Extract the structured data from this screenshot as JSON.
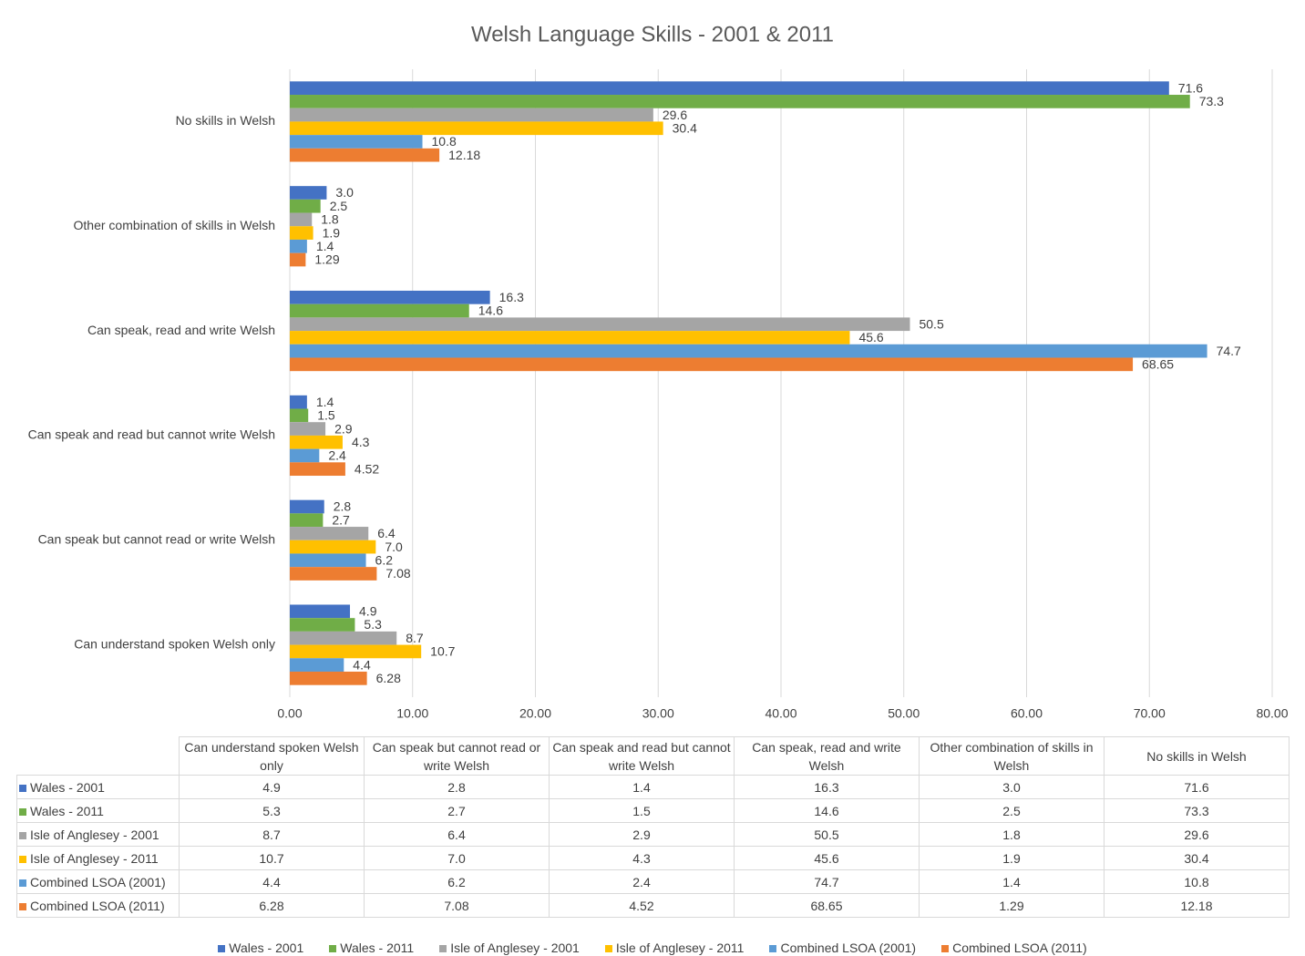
{
  "chart_data": {
    "type": "bar",
    "orientation": "horizontal",
    "title": "Welsh Language Skills - 2001 & 2011",
    "categories": [
      "Can understand spoken Welsh only",
      "Can speak but cannot read or write Welsh",
      "Can speak and read but cannot write Welsh",
      "Can speak, read and write Welsh",
      "Other combination of skills in Welsh",
      "No skills in Welsh"
    ],
    "series": [
      {
        "name": "Wales - 2001",
        "color": "#4472c4",
        "values": [
          4.9,
          2.8,
          1.4,
          16.3,
          3.0,
          71.6
        ],
        "value_labels": [
          "4.9",
          "2.8",
          "1.4",
          "16.3",
          "3.0",
          "71.6"
        ]
      },
      {
        "name": "Wales - 2011",
        "color": "#70ad47",
        "values": [
          5.3,
          2.7,
          1.5,
          14.6,
          2.5,
          73.3
        ],
        "value_labels": [
          "5.3",
          "2.7",
          "1.5",
          "14.6",
          "2.5",
          "73.3"
        ]
      },
      {
        "name": "Isle of Anglesey - 2001",
        "color": "#a5a5a5",
        "values": [
          8.7,
          6.4,
          2.9,
          50.5,
          1.8,
          29.6
        ],
        "value_labels": [
          "8.7",
          "6.4",
          "2.9",
          "50.5",
          "1.8",
          "29.6"
        ]
      },
      {
        "name": "Isle of Anglesey - 2011",
        "color": "#ffc000",
        "values": [
          10.7,
          7.0,
          4.3,
          45.6,
          1.9,
          30.4
        ],
        "value_labels": [
          "10.7",
          "7.0",
          "4.3",
          "45.6",
          "1.9",
          "30.4"
        ]
      },
      {
        "name": "Combined LSOA (2001)",
        "color": "#5b9bd5",
        "values": [
          4.4,
          6.2,
          2.4,
          74.7,
          1.4,
          10.8
        ],
        "value_labels": [
          "4.4",
          "6.2",
          "2.4",
          "74.7",
          "1.4",
          "10.8"
        ]
      },
      {
        "name": "Combined LSOA (2011)",
        "color": "#ed7d31",
        "values": [
          6.28,
          7.08,
          4.52,
          68.65,
          1.29,
          12.18
        ],
        "value_labels": [
          "6.28",
          "7.08",
          "4.52",
          "68.65",
          "1.29",
          "12.18"
        ]
      }
    ],
    "xlim": [
      0,
      80
    ],
    "xticks": [
      {
        "value": 0,
        "label": "0.00"
      },
      {
        "value": 10,
        "label": "10.00"
      },
      {
        "value": 20,
        "label": "20.00"
      },
      {
        "value": 30,
        "label": "30.00"
      },
      {
        "value": 40,
        "label": "40.00"
      },
      {
        "value": 50,
        "label": "50.00"
      },
      {
        "value": 60,
        "label": "60.00"
      },
      {
        "value": 70,
        "label": "70.00"
      },
      {
        "value": 80,
        "label": "80.00"
      }
    ],
    "grid": true,
    "data_table": true,
    "legend": "bottom"
  }
}
